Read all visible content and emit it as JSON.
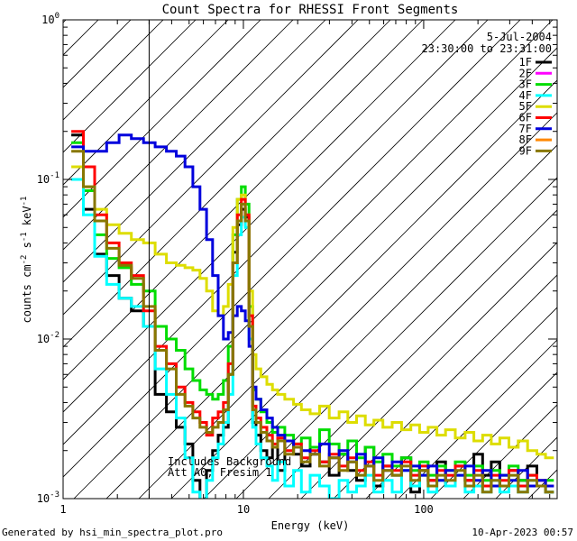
{
  "chart_data": {
    "type": "line",
    "title": "Count Spectra for RHESSI Front Segments",
    "xlabel": "Energy (keV)",
    "ylabel_parts": [
      "counts cm",
      "-2",
      " s",
      "-1",
      " keV",
      "-1"
    ],
    "xscale": "log",
    "yscale": "log",
    "xlim": [
      1,
      550
    ],
    "ylim": [
      0.001,
      1
    ],
    "x_ticks": [
      {
        "value": 1,
        "label": "1"
      },
      {
        "value": 10,
        "label": "10"
      },
      {
        "value": 100,
        "label": "100"
      }
    ],
    "y_ticks": [
      {
        "value": 1,
        "base": "10",
        "exp": "0"
      },
      {
        "value": 0.1,
        "base": "10",
        "exp": "-1"
      },
      {
        "value": 0.01,
        "base": "10",
        "exp": "-2"
      },
      {
        "value": 0.001,
        "base": "10",
        "exp": "-3"
      }
    ],
    "hatched_region": {
      "x_min": 1,
      "x_max": 3
    },
    "legend": {
      "placement": "top-right",
      "date": "5-Jul-2004",
      "time_range": "23:30:00 to 23:31:00"
    },
    "annotations": [
      "Includes Background",
      "Att A0, Fresim 1"
    ],
    "series": [
      {
        "name": "1F",
        "color": "#000000",
        "x": [
          1.2,
          1.4,
          1.6,
          1.9,
          2.2,
          2.6,
          3.0,
          3.5,
          4.0,
          4.5,
          5.0,
          5.5,
          6.0,
          6.5,
          7.0,
          7.5,
          8.0,
          8.5,
          9.0,
          9.5,
          10.0,
          10.5,
          11.0,
          11.5,
          12.0,
          13.0,
          14.0,
          15.0,
          16.0,
          18.0,
          20.0,
          22.0,
          25.0,
          28.0,
          32.0,
          36.0,
          40.0,
          45.0,
          50.0,
          56.0,
          63.0,
          71.0,
          80.0,
          90.0,
          100.0,
          112.0,
          125.0,
          140.0,
          160.0,
          180.0,
          200.0,
          225.0,
          250.0,
          280.0,
          315.0,
          355.0,
          400.0,
          450.0,
          500.0
        ],
        "y": [
          0.19,
          0.065,
          0.034,
          0.025,
          0.018,
          0.015,
          0.012,
          0.0045,
          0.0035,
          0.0028,
          0.0022,
          0.0013,
          0.0009,
          0.0015,
          0.002,
          0.0025,
          0.0028,
          0.006,
          0.035,
          0.052,
          0.065,
          0.058,
          0.012,
          0.003,
          0.0025,
          0.002,
          0.0018,
          0.0021,
          0.0015,
          0.0023,
          0.0019,
          0.0016,
          0.0021,
          0.0017,
          0.0014,
          0.0019,
          0.0015,
          0.0013,
          0.0021,
          0.0012,
          0.0016,
          0.0014,
          0.0018,
          0.0011,
          0.0015,
          0.0013,
          0.0017,
          0.0012,
          0.0016,
          0.0013,
          0.0019,
          0.0014,
          0.0017,
          0.0012,
          0.0015,
          0.0013,
          0.0016,
          0.0012,
          0.0011
        ]
      },
      {
        "name": "2F",
        "color": "#ff00ff",
        "x": [],
        "y": []
      },
      {
        "name": "3F",
        "color": "#00dd00",
        "x": [
          1.2,
          1.4,
          1.6,
          1.9,
          2.2,
          2.6,
          3.0,
          3.5,
          4.0,
          4.5,
          5.0,
          5.5,
          6.0,
          6.5,
          7.0,
          7.5,
          8.0,
          8.5,
          9.0,
          9.5,
          10.0,
          10.5,
          11.0,
          11.5,
          12.0,
          13.0,
          14.0,
          15.0,
          16.0,
          18.0,
          20.0,
          22.0,
          25.0,
          28.0,
          32.0,
          36.0,
          40.0,
          45.0,
          50.0,
          56.0,
          63.0,
          71.0,
          80.0,
          90.0,
          100.0,
          112.0,
          125.0,
          140.0,
          160.0,
          180.0,
          200.0,
          225.0,
          250.0,
          280.0,
          315.0,
          355.0,
          400.0,
          450.0,
          500.0
        ],
        "y": [
          0.17,
          0.085,
          0.045,
          0.032,
          0.028,
          0.022,
          0.02,
          0.012,
          0.01,
          0.0085,
          0.0065,
          0.0055,
          0.0048,
          0.0045,
          0.0042,
          0.0045,
          0.0055,
          0.009,
          0.045,
          0.075,
          0.09,
          0.07,
          0.016,
          0.0048,
          0.0042,
          0.0035,
          0.003,
          0.0026,
          0.0028,
          0.0025,
          0.0022,
          0.0024,
          0.0021,
          0.0027,
          0.0022,
          0.0019,
          0.0023,
          0.0018,
          0.0021,
          0.0017,
          0.0019,
          0.0016,
          0.0018,
          0.0015,
          0.0017,
          0.0014,
          0.0016,
          0.0015,
          0.0017,
          0.0014,
          0.0016,
          0.0013,
          0.0015,
          0.0014,
          0.0016,
          0.0013,
          0.0014,
          0.0012,
          0.0013
        ]
      },
      {
        "name": "4F",
        "color": "#00ffff",
        "x": [
          1.2,
          1.4,
          1.6,
          1.9,
          2.2,
          2.6,
          3.0,
          3.5,
          4.0,
          4.5,
          5.0,
          5.5,
          6.0,
          6.5,
          7.0,
          7.5,
          8.0,
          8.5,
          9.0,
          9.5,
          10.0,
          10.5,
          11.0,
          11.5,
          12.0,
          13.0,
          14.0,
          15.0,
          16.0,
          18.0,
          20.0,
          22.0,
          25.0,
          28.0,
          32.0,
          36.0,
          40.0,
          45.0,
          50.0,
          56.0,
          63.0,
          71.0,
          80.0,
          90.0,
          100.0,
          112.0,
          125.0,
          140.0,
          160.0,
          180.0,
          200.0,
          225.0,
          250.0,
          280.0,
          315.0,
          355.0,
          400.0,
          450.0,
          500.0
        ],
        "y": [
          0.1,
          0.06,
          0.033,
          0.022,
          0.018,
          0.016,
          0.012,
          0.0065,
          0.0045,
          0.0032,
          0.0018,
          0.0011,
          0.0009,
          0.0013,
          0.0018,
          0.0022,
          0.003,
          0.0045,
          0.025,
          0.045,
          0.058,
          0.05,
          0.01,
          0.0028,
          0.0022,
          0.0018,
          0.0016,
          0.0013,
          0.0017,
          0.0012,
          0.0015,
          0.0011,
          0.0014,
          0.0012,
          0.001,
          0.0013,
          0.0011,
          0.0012,
          0.0014,
          0.0011,
          0.0013,
          0.0011,
          0.0015,
          0.0012,
          0.0014,
          0.0011,
          0.0013,
          0.0012,
          0.0014,
          0.0011,
          0.0012,
          0.0011,
          0.0013,
          0.0011,
          0.0012,
          0.0011,
          0.0013,
          0.0012,
          0.0011
        ]
      },
      {
        "name": "5F",
        "color": "#dddd00",
        "x": [
          1.2,
          1.4,
          1.6,
          1.9,
          2.2,
          2.6,
          3.0,
          3.5,
          4.0,
          4.5,
          5.0,
          5.5,
          6.0,
          6.5,
          7.0,
          7.5,
          8.0,
          8.5,
          9.0,
          9.5,
          10.0,
          10.5,
          11.0,
          11.5,
          12.0,
          13.0,
          14.0,
          15.0,
          16.0,
          18.0,
          20.0,
          22.0,
          25.0,
          28.0,
          32.0,
          36.0,
          40.0,
          45.0,
          50.0,
          56.0,
          63.0,
          71.0,
          80.0,
          90.0,
          100.0,
          112.0,
          125.0,
          140.0,
          160.0,
          180.0,
          200.0,
          225.0,
          250.0,
          280.0,
          315.0,
          355.0,
          400.0,
          450.0,
          500.0
        ],
        "y": [
          0.12,
          0.09,
          0.065,
          0.052,
          0.046,
          0.042,
          0.04,
          0.034,
          0.03,
          0.029,
          0.028,
          0.027,
          0.024,
          0.02,
          0.015,
          0.014,
          0.016,
          0.022,
          0.05,
          0.075,
          0.08,
          0.06,
          0.02,
          0.008,
          0.0065,
          0.0058,
          0.0052,
          0.0048,
          0.0045,
          0.0042,
          0.0039,
          0.0036,
          0.0034,
          0.0038,
          0.0032,
          0.0035,
          0.003,
          0.0033,
          0.0029,
          0.0031,
          0.0028,
          0.003,
          0.0027,
          0.0029,
          0.0026,
          0.0028,
          0.0025,
          0.0027,
          0.0024,
          0.0026,
          0.0023,
          0.0025,
          0.0022,
          0.0024,
          0.0021,
          0.0023,
          0.002,
          0.0019,
          0.0018
        ]
      },
      {
        "name": "6F",
        "color": "#ff0000",
        "x": [
          1.2,
          1.4,
          1.6,
          1.9,
          2.2,
          2.6,
          3.0,
          3.5,
          4.0,
          4.5,
          5.0,
          5.5,
          6.0,
          6.5,
          7.0,
          7.5,
          8.0,
          8.5,
          9.0,
          9.5,
          10.0,
          10.5,
          11.0,
          11.5,
          12.0,
          13.0,
          14.0,
          15.0,
          16.0,
          18.0,
          20.0,
          22.0,
          25.0,
          28.0,
          32.0,
          36.0,
          40.0,
          45.0,
          50.0,
          56.0,
          63.0,
          71.0,
          80.0,
          90.0,
          100.0,
          112.0,
          125.0,
          140.0,
          160.0,
          180.0,
          200.0,
          225.0,
          250.0,
          280.0,
          315.0,
          355.0,
          400.0,
          450.0,
          500.0
        ],
        "y": [
          0.2,
          0.12,
          0.06,
          0.04,
          0.03,
          0.025,
          0.015,
          0.009,
          0.007,
          0.005,
          0.004,
          0.0035,
          0.003,
          0.0025,
          0.0032,
          0.0035,
          0.004,
          0.007,
          0.03,
          0.06,
          0.075,
          0.06,
          0.014,
          0.0038,
          0.0032,
          0.0028,
          0.0025,
          0.0022,
          0.0024,
          0.002,
          0.0022,
          0.0018,
          0.002,
          0.0017,
          0.0019,
          0.0016,
          0.0018,
          0.0015,
          0.0017,
          0.0014,
          0.0016,
          0.0015,
          0.0017,
          0.0014,
          0.0016,
          0.0013,
          0.0015,
          0.0014,
          0.0016,
          0.0013,
          0.0015,
          0.0012,
          0.0014,
          0.0013,
          0.0015,
          0.0012,
          0.0014,
          0.0013,
          0.0012
        ]
      },
      {
        "name": "7F",
        "color": "#0000dd",
        "x": [
          1.2,
          1.4,
          1.6,
          1.9,
          2.2,
          2.6,
          3.0,
          3.5,
          4.0,
          4.5,
          5.0,
          5.5,
          6.0,
          6.5,
          7.0,
          7.5,
          8.0,
          8.5,
          9.0,
          9.5,
          10.0,
          10.5,
          11.0,
          11.5,
          12.0,
          13.0,
          14.0,
          15.0,
          16.0,
          18.0,
          20.0,
          22.0,
          25.0,
          28.0,
          32.0,
          36.0,
          40.0,
          45.0,
          50.0,
          56.0,
          63.0,
          71.0,
          80.0,
          90.0,
          100.0,
          112.0,
          125.0,
          140.0,
          160.0,
          180.0,
          200.0,
          225.0,
          250.0,
          280.0,
          315.0,
          355.0,
          400.0,
          450.0,
          500.0
        ],
        "y": [
          0.16,
          0.15,
          0.15,
          0.17,
          0.19,
          0.18,
          0.17,
          0.16,
          0.15,
          0.14,
          0.12,
          0.09,
          0.065,
          0.042,
          0.025,
          0.014,
          0.01,
          0.011,
          0.014,
          0.016,
          0.015,
          0.013,
          0.009,
          0.005,
          0.0042,
          0.0036,
          0.0032,
          0.0028,
          0.0025,
          0.0023,
          0.0021,
          0.002,
          0.0019,
          0.0022,
          0.0018,
          0.002,
          0.0017,
          0.0019,
          0.0016,
          0.0018,
          0.0015,
          0.0017,
          0.0015,
          0.0016,
          0.0014,
          0.0016,
          0.0013,
          0.0015,
          0.0014,
          0.0016,
          0.0013,
          0.0015,
          0.0012,
          0.0014,
          0.0013,
          0.0015,
          0.0012,
          0.0013,
          0.0012
        ]
      },
      {
        "name": "8F",
        "color": "#ff8800",
        "x": [],
        "y": []
      },
      {
        "name": "9F",
        "color": "#887700",
        "x": [
          1.2,
          1.4,
          1.6,
          1.9,
          2.2,
          2.6,
          3.0,
          3.5,
          4.0,
          4.5,
          5.0,
          5.5,
          6.0,
          6.5,
          7.0,
          7.5,
          8.0,
          8.5,
          9.0,
          9.5,
          10.0,
          10.5,
          11.0,
          11.5,
          12.0,
          13.0,
          14.0,
          15.0,
          16.0,
          18.0,
          20.0,
          22.0,
          25.0,
          28.0,
          32.0,
          36.0,
          40.0,
          45.0,
          50.0,
          56.0,
          63.0,
          71.0,
          80.0,
          90.0,
          100.0,
          112.0,
          125.0,
          140.0,
          160.0,
          180.0,
          200.0,
          225.0,
          250.0,
          280.0,
          315.0,
          355.0,
          400.0,
          450.0,
          500.0
        ],
        "y": [
          0.15,
          0.09,
          0.055,
          0.037,
          0.029,
          0.024,
          0.016,
          0.0085,
          0.0065,
          0.0045,
          0.0038,
          0.0032,
          0.0028,
          0.0026,
          0.0028,
          0.003,
          0.0036,
          0.006,
          0.03,
          0.055,
          0.07,
          0.055,
          0.012,
          0.0036,
          0.003,
          0.0026,
          0.0023,
          0.0021,
          0.0023,
          0.0019,
          0.0021,
          0.0017,
          0.0019,
          0.0016,
          0.0018,
          0.0015,
          0.0017,
          0.0014,
          0.0016,
          0.0013,
          0.0015,
          0.0014,
          0.0016,
          0.0013,
          0.0015,
          0.0012,
          0.0014,
          0.0013,
          0.0015,
          0.0012,
          0.0014,
          0.0011,
          0.0013,
          0.0012,
          0.0014,
          0.0011,
          0.0013,
          0.0012,
          0.0011
        ]
      }
    ]
  },
  "footer": {
    "left": "Generated by hsi_min_spectra_plot.pro",
    "right": "10-Apr-2023 00:57"
  }
}
